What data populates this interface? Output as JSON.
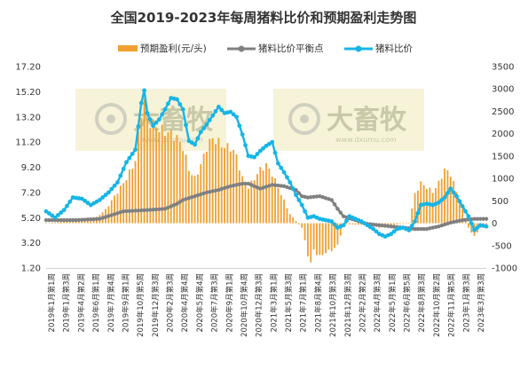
{
  "chart_data": {
    "type": "line+bar",
    "title": "全国2019-2023年每周猪料比价和预期盈利走势图",
    "legend": {
      "placement": "top",
      "items": [
        {
          "name": "预期盈利(元/头)",
          "color": "#f0a030",
          "kind": "bar"
        },
        {
          "name": "猪料比价平衡点",
          "color": "#808080",
          "kind": "line"
        },
        {
          "name": "猪料比价",
          "color": "#16b5e6",
          "kind": "line"
        }
      ]
    },
    "y_left": {
      "ticks": [
        "17.20",
        "15.20",
        "13.20",
        "11.20",
        "9.20",
        "7.20",
        "5.20",
        "3.20",
        "1.20"
      ],
      "range": [
        1.2,
        17.2
      ]
    },
    "y_right": {
      "ticks": [
        "3500",
        "3000",
        "2500",
        "2000",
        "1500",
        "1000",
        "500",
        "0",
        "-500",
        "-1000"
      ],
      "range": [
        -1000,
        3500
      ]
    },
    "x_labels": [
      "2019年1月第1周",
      "2019年1月第3周",
      "2019年4月第2周",
      "2019年6月第1周",
      "2019年7月第4周",
      "2019年9月第1周",
      "2019年10月第5周",
      "2019年12月第3周",
      "2020年2月第3周",
      "2020年4月第4周",
      "2020年5月第4周",
      "2020年7月第3周",
      "2020年9月第1周",
      "2020年10月第4周",
      "2020年12月第3周",
      "2021年3月第1周",
      "2021年5月第3周",
      "2021年7月第1周",
      "2021年8月第4周",
      "2021年10月第3周",
      "2021年12月第3周",
      "2022年2月第2周",
      "2022年4月第3周",
      "2022年5月第1周",
      "2022年6月第5周",
      "2022年8月第3周",
      "2022年10月第2周",
      "2022年11月第5周",
      "2023年1月第3周",
      "2023年3月第3周"
    ],
    "watermark": {
      "brand": "大畜牧",
      "url": "www.dxumu.com"
    },
    "series": [
      {
        "name": "猪料比价",
        "axis": "left",
        "anchors": [
          [
            0,
            5.7
          ],
          [
            3,
            5.2
          ],
          [
            6,
            5.8
          ],
          [
            9,
            6.8
          ],
          [
            12,
            6.7
          ],
          [
            15,
            6.2
          ],
          [
            18,
            6.6
          ],
          [
            21,
            7.2
          ],
          [
            24,
            8.0
          ],
          [
            27,
            9.6
          ],
          [
            30,
            10.6
          ],
          [
            32,
            14.3
          ],
          [
            33,
            15.3
          ],
          [
            34,
            13.5
          ],
          [
            36,
            12.5
          ],
          [
            38,
            13.0
          ],
          [
            40,
            13.8
          ],
          [
            42,
            14.7
          ],
          [
            44,
            14.6
          ],
          [
            46,
            13.8
          ],
          [
            48,
            11.3
          ],
          [
            50,
            11.0
          ],
          [
            52,
            12.0
          ],
          [
            54,
            12.6
          ],
          [
            56,
            13.3
          ],
          [
            58,
            14.0
          ],
          [
            60,
            13.5
          ],
          [
            62,
            13.6
          ],
          [
            64,
            13.2
          ],
          [
            66,
            11.8
          ],
          [
            68,
            10.1
          ],
          [
            70,
            10.0
          ],
          [
            72,
            10.5
          ],
          [
            74,
            10.9
          ],
          [
            76,
            11.2
          ],
          [
            78,
            9.5
          ],
          [
            80,
            8.8
          ],
          [
            82,
            8.0
          ],
          [
            84,
            7.0
          ],
          [
            86,
            6.2
          ],
          [
            88,
            5.2
          ],
          [
            90,
            5.3
          ],
          [
            92,
            5.1
          ],
          [
            94,
            5.0
          ],
          [
            96,
            4.9
          ],
          [
            98,
            4.4
          ],
          [
            100,
            4.6
          ],
          [
            102,
            5.3
          ],
          [
            104,
            5.1
          ],
          [
            106,
            4.9
          ],
          [
            108,
            4.6
          ],
          [
            110,
            4.3
          ],
          [
            112,
            3.9
          ],
          [
            114,
            3.7
          ],
          [
            116,
            3.9
          ],
          [
            118,
            4.3
          ],
          [
            120,
            4.4
          ],
          [
            122,
            4.2
          ],
          [
            124,
            4.9
          ],
          [
            126,
            6.2
          ],
          [
            128,
            6.3
          ],
          [
            130,
            6.2
          ],
          [
            132,
            6.4
          ],
          [
            134,
            6.8
          ],
          [
            136,
            7.5
          ],
          [
            138,
            6.9
          ],
          [
            140,
            6.1
          ],
          [
            142,
            5.3
          ],
          [
            144,
            4.2
          ],
          [
            146,
            4.6
          ],
          [
            148,
            4.5
          ]
        ]
      },
      {
        "name": "猪料比价平衡点",
        "axis": "left",
        "anchors": [
          [
            0,
            5.0
          ],
          [
            10,
            5.0
          ],
          [
            18,
            5.1
          ],
          [
            22,
            5.4
          ],
          [
            26,
            5.7
          ],
          [
            34,
            5.8
          ],
          [
            40,
            5.9
          ],
          [
            44,
            6.3
          ],
          [
            46,
            6.6
          ],
          [
            50,
            6.9
          ],
          [
            54,
            7.2
          ],
          [
            58,
            7.4
          ],
          [
            62,
            7.7
          ],
          [
            66,
            7.9
          ],
          [
            68,
            7.9
          ],
          [
            70,
            7.7
          ],
          [
            72,
            7.5
          ],
          [
            76,
            7.8
          ],
          [
            80,
            7.7
          ],
          [
            84,
            7.4
          ],
          [
            86,
            6.9
          ],
          [
            88,
            6.8
          ],
          [
            92,
            6.9
          ],
          [
            96,
            6.6
          ],
          [
            98,
            5.9
          ],
          [
            100,
            5.3
          ],
          [
            104,
            5.0
          ],
          [
            108,
            4.7
          ],
          [
            112,
            4.6
          ],
          [
            116,
            4.5
          ],
          [
            120,
            4.4
          ],
          [
            124,
            4.3
          ],
          [
            128,
            4.3
          ],
          [
            132,
            4.5
          ],
          [
            136,
            4.8
          ],
          [
            140,
            5.0
          ],
          [
            144,
            5.1
          ],
          [
            148,
            5.1
          ]
        ]
      },
      {
        "name": "预期盈利(元/头)",
        "axis": "right",
        "anchors": [
          [
            0,
            0
          ],
          [
            4,
            20
          ],
          [
            8,
            60
          ],
          [
            12,
            60
          ],
          [
            16,
            80
          ],
          [
            20,
            300
          ],
          [
            24,
            700
          ],
          [
            27,
            1000
          ],
          [
            30,
            1400
          ],
          [
            32,
            2500
          ],
          [
            33,
            2700
          ],
          [
            34,
            2300
          ],
          [
            38,
            2100
          ],
          [
            42,
            2000
          ],
          [
            44,
            1900
          ],
          [
            46,
            1700
          ],
          [
            48,
            1200
          ],
          [
            50,
            1000
          ],
          [
            52,
            1300
          ],
          [
            54,
            1700
          ],
          [
            56,
            1900
          ],
          [
            58,
            1800
          ],
          [
            60,
            1700
          ],
          [
            62,
            1700
          ],
          [
            64,
            1500
          ],
          [
            66,
            1000
          ],
          [
            68,
            800
          ],
          [
            70,
            1000
          ],
          [
            72,
            1200
          ],
          [
            74,
            1300
          ],
          [
            76,
            1100
          ],
          [
            78,
            800
          ],
          [
            80,
            500
          ],
          [
            82,
            200
          ],
          [
            84,
            50
          ],
          [
            86,
            -100
          ],
          [
            88,
            -700
          ],
          [
            89,
            -900
          ],
          [
            90,
            -600
          ],
          [
            92,
            -750
          ],
          [
            94,
            -650
          ],
          [
            96,
            -600
          ],
          [
            98,
            -500
          ],
          [
            100,
            -20
          ],
          [
            104,
            -30
          ],
          [
            108,
            -40
          ],
          [
            112,
            -100
          ],
          [
            116,
            -50
          ],
          [
            120,
            0
          ],
          [
            122,
            0
          ],
          [
            124,
            650
          ],
          [
            126,
            900
          ],
          [
            128,
            800
          ],
          [
            130,
            700
          ],
          [
            132,
            900
          ],
          [
            134,
            1200
          ],
          [
            136,
            1100
          ],
          [
            138,
            700
          ],
          [
            140,
            300
          ],
          [
            142,
            -100
          ],
          [
            144,
            -300
          ],
          [
            146,
            -100
          ],
          [
            148,
            -50
          ]
        ]
      }
    ]
  }
}
